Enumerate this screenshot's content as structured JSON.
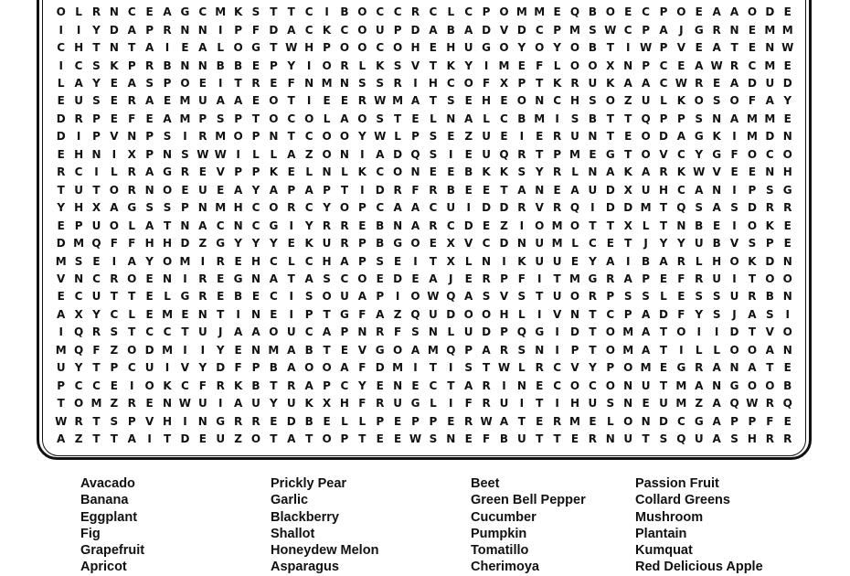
{
  "grid": [
    "OLRNCEAGCMKSTTCIBOCCRCLCPOMMEQBOECPOEAAODE",
    "IIYDAPRNNIPFDACKCOUPDABADVDCPMSWCPAJGRNEMM",
    "CHTNTAIEALOGTWHPOOCOHEHUGOYOYOBTIWPVEATENW",
    "ICSKPRBNNBBEPYIORLKSVTKYIMEFLOOXNPCEAWRCME",
    "LAYEASPOEITREFNMNSSRIHCOFXPTKRUKAACWREADUD",
    "EUSERAEMUAAEOTIEERWMATSEHEONCHSOZULKOSOFAY",
    "DRPEFEAMPSPTOCOLAOSTELNALCBMISBTTQPPSNAMME",
    "DIPVNPSIRMOPNTCOOYWLPSEZUEIERUNTEODAGKIMDN",
    "EHNIXPNSWWILLAZONIADQSIEUQRTPMEGTOVCYGFOCO",
    "RCILRAGREVPPKELNLKCONEEBKKSYRLNAKARKWVEENH",
    "TUTORNOEUEAYAPAPTIDRFRBEETANEAUDXUHCANIPSG",
    "YHXAGSSPNMHCORCYOPCAACUIDDRVRQIDDMTQSASDRR",
    "EPUOLATNACNCGIYRREBNARCDEZIOMOTTXLTNBEIOKE",
    "DMQFFHHDZGYYYEKURPBGOEXVCDNUMLCETJYYUBVSPE",
    "MSEIAYOMIREHCLCHAPSEITXLNIKUUEYAIBARLHOKDN",
    "VNCROENIREGNATASCOEDEAJERPFITMGRAPEFRUITOO",
    "ECUTTELGREBECISOUAPIOWQASVSTUORPSSLESSURBN",
    "AXYCLEMENTINEIPTGFAZQUDOOHLIVNTCPADFYSJASI",
    "IQRSTCCTUJAAOUCAPNRFSNLUDPQGIDTOMATOIIDTVO",
    "MQFZODMIIYENMABTEVGOAMQPARSNIPTOMATILLOOAN",
    "UYTPCUIVYDFPBAOOAFDMITISTWLRCVYPOMEGRANATE",
    "PCCEIOKCFRKBTRAPCYENECTARINECOCONUTMANGOOB",
    "TOMZRENWUIAUYUKXHFRUGLIFRUITIHUSNEUMZAQWRQ",
    "WRTSPVHINGRREDBELLPEPPERWATERMELONDCGAPPFE",
    "AZTTAITDEUZOTATOPTEEWSNEFBUTTERNUTSQUASHRR"
  ],
  "word_columns": [
    [
      "Avacado",
      "Banana",
      "Eggplant",
      "Fig",
      "Grapefruit",
      "Apricot"
    ],
    [
      "Prickly Pear",
      "Garlic",
      "Blackberry",
      "Shallot",
      "Honeydew Melon",
      "Asparagus"
    ],
    [
      "Beet",
      "Green Bell Pepper",
      "Cucumber",
      "Pumpkin",
      "Tomatillo",
      "Cherimoya"
    ],
    [
      "Passion Fruit",
      "Collard Greens",
      "Mushroom",
      "Plantain",
      "Kumquat",
      "Red Delicious Apple"
    ]
  ]
}
